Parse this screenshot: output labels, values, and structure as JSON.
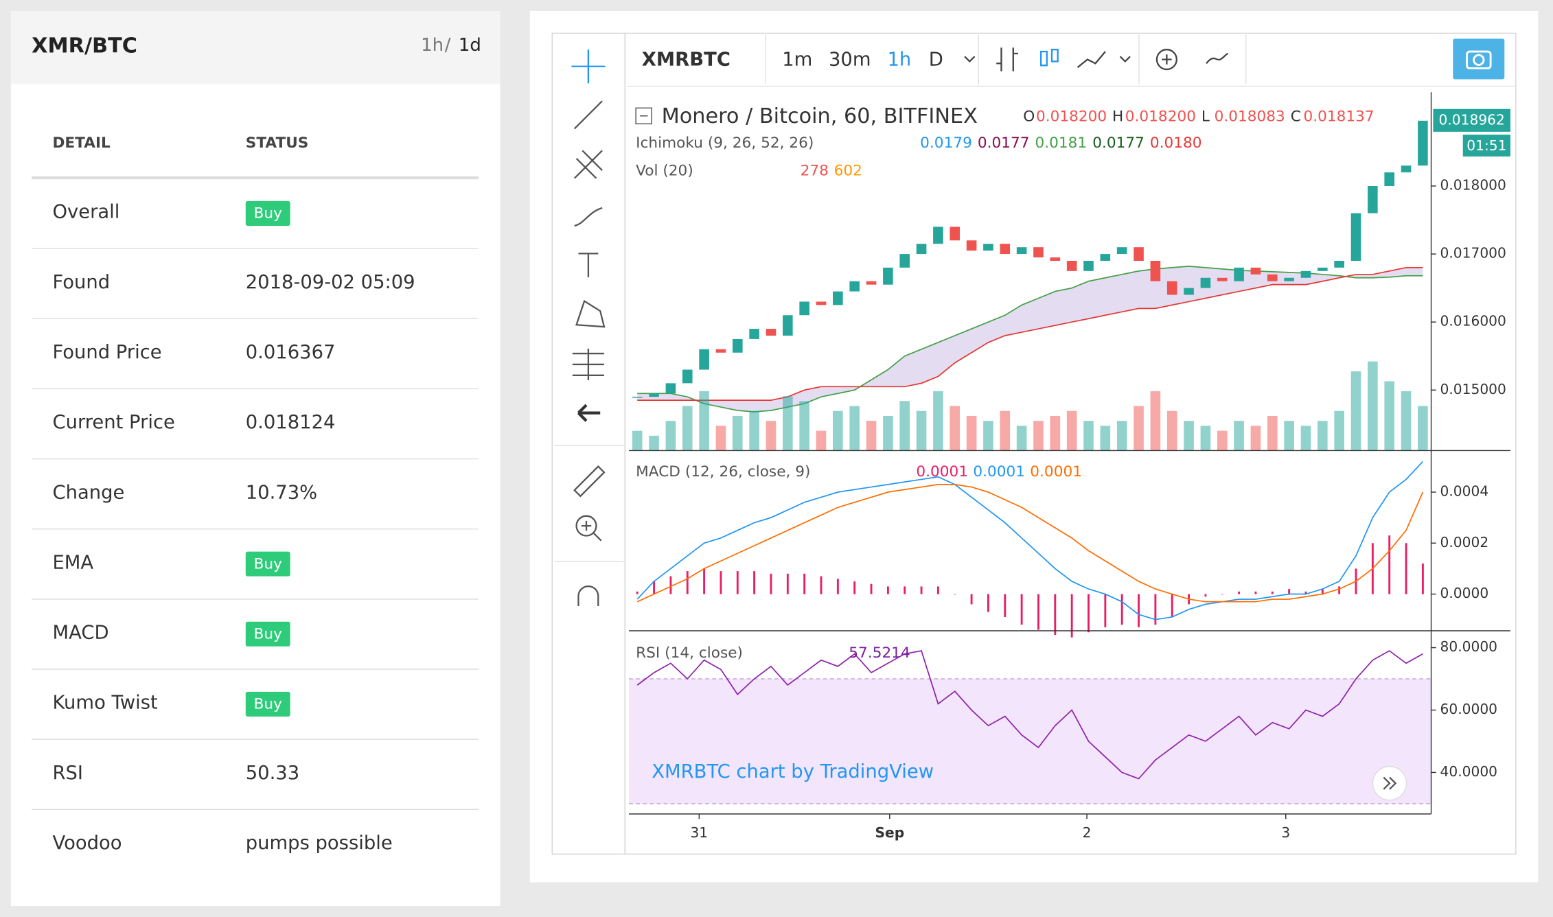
{
  "panel": {
    "title": "XMR/BTC",
    "tf_a": "1h",
    "sep": "/",
    "tf_b": "1d",
    "headers": [
      "DETAIL",
      "STATUS"
    ],
    "rows": [
      {
        "label": "Overall",
        "value": "Buy",
        "badge": true
      },
      {
        "label": "Found",
        "value": "2018-09-02 05:09"
      },
      {
        "label": "Found Price",
        "value": "0.016367"
      },
      {
        "label": "Current Price",
        "value": "0.018124"
      },
      {
        "label": "Change",
        "value": "10.73%"
      },
      {
        "label": "EMA",
        "value": "Buy",
        "badge": true
      },
      {
        "label": "MACD",
        "value": "Buy",
        "badge": true
      },
      {
        "label": "Kumo Twist",
        "value": "Buy",
        "badge": true
      },
      {
        "label": "RSI",
        "value": "50.33"
      },
      {
        "label": "Voodoo",
        "value": "pumps possible"
      }
    ]
  },
  "toolbar": {
    "symbol": "XMRBTC",
    "intervals": [
      "1m",
      "30m",
      "1h",
      "D"
    ],
    "active": 2
  },
  "chart_data": {
    "type": "candlestick",
    "title": "Monero / Bitcoin, 60, BITFINEX",
    "ohlc": [
      {
        "key": "O",
        "value": "0.018200"
      },
      {
        "key": "H",
        "value": "0.018200"
      },
      {
        "key": "L",
        "value": "0.018083"
      },
      {
        "key": "C",
        "value": "0.018137"
      }
    ],
    "ichimoku": {
      "name": "Ichimoku (9, 26, 52, 26)",
      "values": [
        "0.0179",
        "0.0177",
        "0.0181",
        "0.0177",
        "0.0180"
      ],
      "colors": [
        "#2196f3",
        "#880e4f",
        "#43a047",
        "#1b5e20",
        "#e53935"
      ]
    },
    "vol": {
      "name": "Vol (20)",
      "values": [
        "278",
        "602"
      ],
      "colors": [
        "#ef5350",
        "#ff9800"
      ]
    },
    "macd_legend": {
      "name": "MACD (12, 26, close, 9)",
      "values": [
        "0.0001",
        "0.0001",
        "0.0001"
      ],
      "colors": [
        "#e91e63",
        "#2196f3",
        "#ff6d00"
      ]
    },
    "rsi_legend": {
      "name": "RSI (14, close)",
      "values": [
        "57.5214"
      ],
      "colors": [
        "#7b1fa2"
      ]
    },
    "watermark": "XMRBTC chart by TradingView",
    "last_price": "0.018962",
    "countdown": "01:51",
    "up_color": "#26a69a",
    "down_color": "#ef5350",
    "xlim": [
      -0.5,
      47.5
    ],
    "xticks": [
      {
        "value": 3.7,
        "label": "31"
      },
      {
        "value": 15.1,
        "label": "Sep"
      },
      {
        "value": 26.9,
        "label": "2"
      },
      {
        "value": 38.8,
        "label": "3"
      }
    ],
    "ylim": [
      0.01411,
      0.01938
    ],
    "yticks": [
      {
        "value": 0.015,
        "label": "0.015000"
      },
      {
        "value": 0.016,
        "label": "0.016000"
      },
      {
        "value": 0.017,
        "label": "0.017000"
      },
      {
        "value": 0.018,
        "label": "0.018000"
      }
    ],
    "close": [
      0.0149,
      0.01495,
      0.0151,
      0.0153,
      0.0156,
      0.01555,
      0.01575,
      0.0159,
      0.0158,
      0.0161,
      0.0163,
      0.01625,
      0.01645,
      0.0166,
      0.01655,
      0.0168,
      0.017,
      0.01715,
      0.0174,
      0.0172,
      0.01705,
      0.01715,
      0.017,
      0.0171,
      0.01695,
      0.0169,
      0.01675,
      0.0169,
      0.017,
      0.0171,
      0.0169,
      0.0166,
      0.0164,
      0.0165,
      0.01665,
      0.0166,
      0.0168,
      0.0167,
      0.0166,
      0.01665,
      0.01675,
      0.0168,
      0.0169,
      0.0176,
      0.018,
      0.0182,
      0.0183,
      0.01896
    ],
    "volume": [
      20,
      15,
      30,
      45,
      60,
      25,
      35,
      40,
      30,
      55,
      50,
      20,
      40,
      45,
      30,
      35,
      50,
      40,
      60,
      45,
      35,
      30,
      40,
      25,
      30,
      35,
      40,
      30,
      25,
      30,
      45,
      60,
      40,
      30,
      25,
      20,
      30,
      25,
      35,
      30,
      25,
      30,
      40,
      80,
      90,
      70,
      60,
      45
    ],
    "span_a": [
      0.01495,
      0.01495,
      0.01495,
      0.0149,
      0.0148,
      0.01475,
      0.0147,
      0.01468,
      0.0147,
      0.01475,
      0.0148,
      0.0149,
      0.01495,
      0.015,
      0.01515,
      0.0153,
      0.0155,
      0.0156,
      0.0157,
      0.0158,
      0.0159,
      0.016,
      0.0161,
      0.01625,
      0.01635,
      0.01645,
      0.0165,
      0.0166,
      0.01665,
      0.0167,
      0.01675,
      0.01678,
      0.0168,
      0.01682,
      0.0168,
      0.01678,
      0.01676,
      0.01675,
      0.01674,
      0.01673,
      0.01672,
      0.0167,
      0.01668,
      0.01665,
      0.01665,
      0.01666,
      0.01668,
      0.01668
    ],
    "span_b": [
      0.01485,
      0.01485,
      0.01485,
      0.01485,
      0.01485,
      0.01485,
      0.01485,
      0.01485,
      0.01485,
      0.0149,
      0.015,
      0.01505,
      0.01505,
      0.01505,
      0.01505,
      0.01505,
      0.01505,
      0.0151,
      0.0152,
      0.0154,
      0.01555,
      0.0157,
      0.0158,
      0.01585,
      0.0159,
      0.01595,
      0.016,
      0.01605,
      0.0161,
      0.01615,
      0.0162,
      0.0162,
      0.01625,
      0.0163,
      0.01635,
      0.0164,
      0.01645,
      0.0165,
      0.01655,
      0.01655,
      0.01655,
      0.0166,
      0.01665,
      0.0167,
      0.0167,
      0.01675,
      0.0168,
      0.0168
    ],
    "macd_ylim": [
      -0.000144,
      0.000563
    ],
    "macd_yticks": [
      {
        "value": 0,
        "label": "0.0000"
      },
      0.0002,
      0.0004
    ],
    "macd": [
      -2e-05,
      5e-05,
      0.0001,
      0.00015,
      0.0002,
      0.00022,
      0.00025,
      0.00028,
      0.0003,
      0.00033,
      0.00036,
      0.00038,
      0.0004,
      0.00041,
      0.00042,
      0.00043,
      0.00044,
      0.00045,
      0.00046,
      0.00043,
      0.00038,
      0.00033,
      0.00028,
      0.00022,
      0.00016,
      0.0001,
      5e-05,
      2e-05,
      0,
      -3e-05,
      -8e-05,
      -0.0001,
      -9e-05,
      -6e-05,
      -4e-05,
      -3e-05,
      -2e-05,
      -2e-05,
      -1e-05,
      0,
      0,
      2e-05,
      5e-05,
      0.00015,
      0.0003,
      0.0004,
      0.00045,
      0.00052
    ],
    "signal": [
      -3e-05,
      0,
      3e-05,
      6e-05,
      0.0001,
      0.00013,
      0.00016,
      0.00019,
      0.00022,
      0.00025,
      0.00028,
      0.00031,
      0.00034,
      0.00036,
      0.00038,
      0.0004,
      0.00041,
      0.00042,
      0.00043,
      0.00043,
      0.00042,
      0.0004,
      0.00037,
      0.00034,
      0.0003,
      0.00026,
      0.00022,
      0.00017,
      0.00013,
      9e-05,
      5e-05,
      2e-05,
      0,
      -2e-05,
      -3e-05,
      -3e-05,
      -3e-05,
      -3e-05,
      -2e-05,
      -2e-05,
      -1e-05,
      0,
      2e-05,
      5e-05,
      0.0001,
      0.00017,
      0.00025,
      0.0004
    ],
    "rsi_ylim": [
      26.7,
      85.4
    ],
    "rsi_yticks": [
      {
        "value": 40,
        "label": "40.0000"
      },
      {
        "value": 60,
        "label": "60.0000"
      },
      {
        "value": 80,
        "label": "80.0000"
      }
    ],
    "rsi_band": [
      30,
      70
    ],
    "rsi": [
      68,
      72,
      75,
      70,
      76,
      73,
      65,
      70,
      74,
      68,
      72,
      76,
      74,
      78,
      72,
      75,
      78,
      79,
      62,
      66,
      60,
      55,
      58,
      52,
      48,
      55,
      60,
      50,
      45,
      40,
      38,
      44,
      48,
      52,
      50,
      54,
      58,
      52,
      56,
      54,
      60,
      58,
      62,
      70,
      76,
      79,
      75,
      78
    ]
  }
}
